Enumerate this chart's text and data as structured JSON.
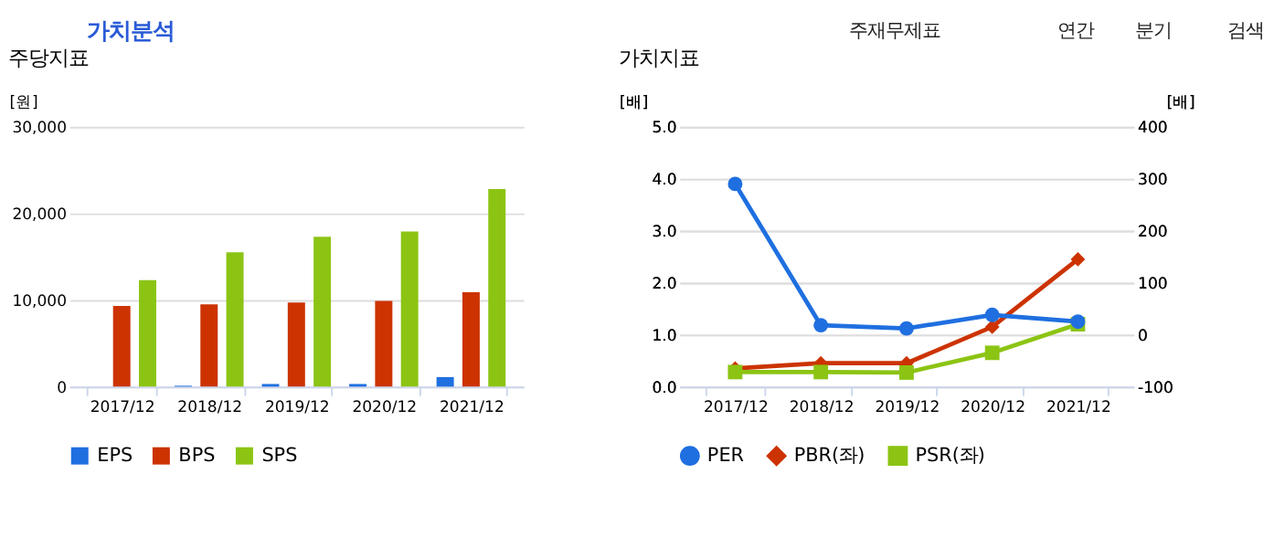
{
  "chart_data": [
    {
      "type": "bar",
      "title": "주당지표",
      "ylabel": "[원]",
      "annotations": [
        "가치분석"
      ],
      "categories": [
        "2017/12",
        "2018/12",
        "2019/12",
        "2020/12",
        "2021/12"
      ],
      "series": [
        {
          "name": "EPS",
          "color": "#1f6fe0",
          "values": [
            0,
            100,
            300,
            300,
            1100
          ]
        },
        {
          "name": "BPS",
          "color": "#cc3300",
          "values": [
            9300,
            9500,
            9700,
            9900,
            10900
          ]
        },
        {
          "name": "SPS",
          "color": "#8cc414",
          "values": [
            12300,
            15500,
            17300,
            17900,
            22800
          ]
        }
      ],
      "ylim": [
        0,
        30000
      ],
      "yticks": [
        {
          "value": 0,
          "label": "0"
        },
        {
          "value": 10000,
          "label": "10,000"
        },
        {
          "value": 20000,
          "label": "20,000"
        },
        {
          "value": 30000,
          "label": "30,000"
        }
      ],
      "grid": "y",
      "legend": "bottom"
    },
    {
      "type": "line",
      "title": "가치지표",
      "ylabel": "[배]",
      "y2label": "[배]",
      "annotations": [
        "주재무제표",
        "연간",
        "분기",
        "검색"
      ],
      "categories": [
        "2017/12",
        "2018/12",
        "2019/12",
        "2020/12",
        "2021/12"
      ],
      "series": [
        {
          "name": "PER",
          "color": "#1f6fe0",
          "axis": "y2",
          "marker": "circle",
          "values": [
            290,
            18,
            12,
            38,
            25
          ]
        },
        {
          "name": "PBR(좌)",
          "color": "#cc3300",
          "marker": "diamond",
          "values": [
            0.35,
            0.45,
            0.45,
            1.15,
            2.45
          ]
        },
        {
          "name": "PSR(좌)",
          "color": "#8cc414",
          "marker": "square",
          "values": [
            0.28,
            0.28,
            0.27,
            0.65,
            1.2
          ]
        }
      ],
      "ylim": [
        0,
        5
      ],
      "yticks": [
        {
          "value": 0,
          "label": "0.0"
        },
        {
          "value": 1,
          "label": "1.0"
        },
        {
          "value": 2,
          "label": "2.0"
        },
        {
          "value": 3,
          "label": "3.0"
        },
        {
          "value": 4,
          "label": "4.0"
        },
        {
          "value": 5,
          "label": "5.0"
        }
      ],
      "y2lim": [
        -100,
        400
      ],
      "y2ticks": [
        -100,
        0,
        100,
        200,
        300,
        400
      ],
      "grid": "y",
      "legend": "bottom",
      "line_style": "solid"
    }
  ]
}
